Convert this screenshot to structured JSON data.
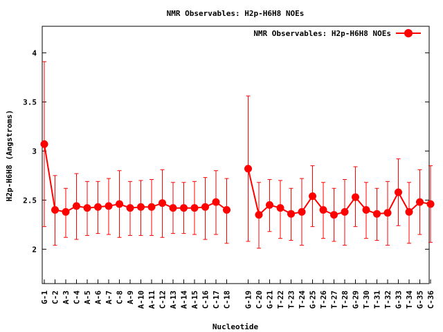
{
  "chart_data": {
    "type": "line",
    "title": "NMR Observables: H2p-H6H8 NOEs",
    "xlabel": "Nucleotide",
    "ylabel": "H2p-H6H8 (Angstroms)",
    "ylim": [
      1.65,
      4.27
    ],
    "yticks": [
      2,
      2.5,
      3,
      3.5,
      4
    ],
    "ytick_labels": [
      "2",
      "2.5",
      "3",
      "3.5",
      "4"
    ],
    "grid": false,
    "legend_position": "top-right",
    "series": [
      {
        "name": "NMR Observables: H2p-H6H8 NOEs",
        "color": "#ff0000",
        "segments": [
          {
            "labels": [
              "G-1",
              "C-2",
              "A-3",
              "C-4",
              "A-5",
              "A-6",
              "A-7",
              "C-8",
              "A-9",
              "A-10",
              "A-11",
              "C-12",
              "A-13",
              "A-14",
              "A-15",
              "C-16",
              "C-17",
              "C-18"
            ],
            "x": [
              1,
              2,
              3,
              4,
              5,
              6,
              7,
              8,
              9,
              10,
              11,
              12,
              13,
              14,
              15,
              16,
              17,
              18
            ],
            "y": [
              3.07,
              2.4,
              2.38,
              2.44,
              2.42,
              2.43,
              2.44,
              2.46,
              2.42,
              2.43,
              2.43,
              2.47,
              2.42,
              2.42,
              2.42,
              2.43,
              2.48,
              2.4
            ],
            "err_low": [
              2.23,
              2.04,
              2.12,
              2.1,
              2.14,
              2.16,
              2.15,
              2.12,
              2.14,
              2.14,
              2.14,
              2.12,
              2.16,
              2.16,
              2.15,
              2.1,
              2.15,
              2.06
            ],
            "err_high": [
              3.91,
              2.75,
              2.62,
              2.77,
              2.69,
              2.69,
              2.72,
              2.8,
              2.69,
              2.7,
              2.71,
              2.81,
              2.68,
              2.68,
              2.69,
              2.73,
              2.8,
              2.72
            ]
          },
          {
            "labels": [
              "G-19",
              "C-20",
              "G-21",
              "T-22",
              "T-23",
              "T-24",
              "G-25",
              "T-26",
              "T-27",
              "T-28",
              "G-29",
              "T-30",
              "T-31",
              "T-32",
              "G-33",
              "T-34",
              "G-35",
              "C-36"
            ],
            "x": [
              20,
              21,
              22,
              23,
              24,
              25,
              26,
              27,
              28,
              29,
              30,
              31,
              32,
              33,
              34,
              35,
              36,
              37
            ],
            "y": [
              2.82,
              2.35,
              2.45,
              2.42,
              2.36,
              2.38,
              2.54,
              2.4,
              2.35,
              2.38,
              2.53,
              2.4,
              2.36,
              2.37,
              2.58,
              2.38,
              2.48,
              2.46
            ],
            "err_low": [
              2.08,
              2.01,
              2.18,
              2.11,
              2.09,
              2.04,
              2.23,
              2.11,
              2.08,
              2.04,
              2.23,
              2.11,
              2.09,
              2.04,
              2.24,
              2.06,
              2.15,
              2.07
            ],
            "err_high": [
              3.56,
              2.68,
              2.71,
              2.7,
              2.62,
              2.72,
              2.85,
              2.68,
              2.62,
              2.71,
              2.84,
              2.68,
              2.62,
              2.69,
              2.92,
              2.68,
              2.81,
              2.85
            ]
          }
        ]
      }
    ]
  }
}
